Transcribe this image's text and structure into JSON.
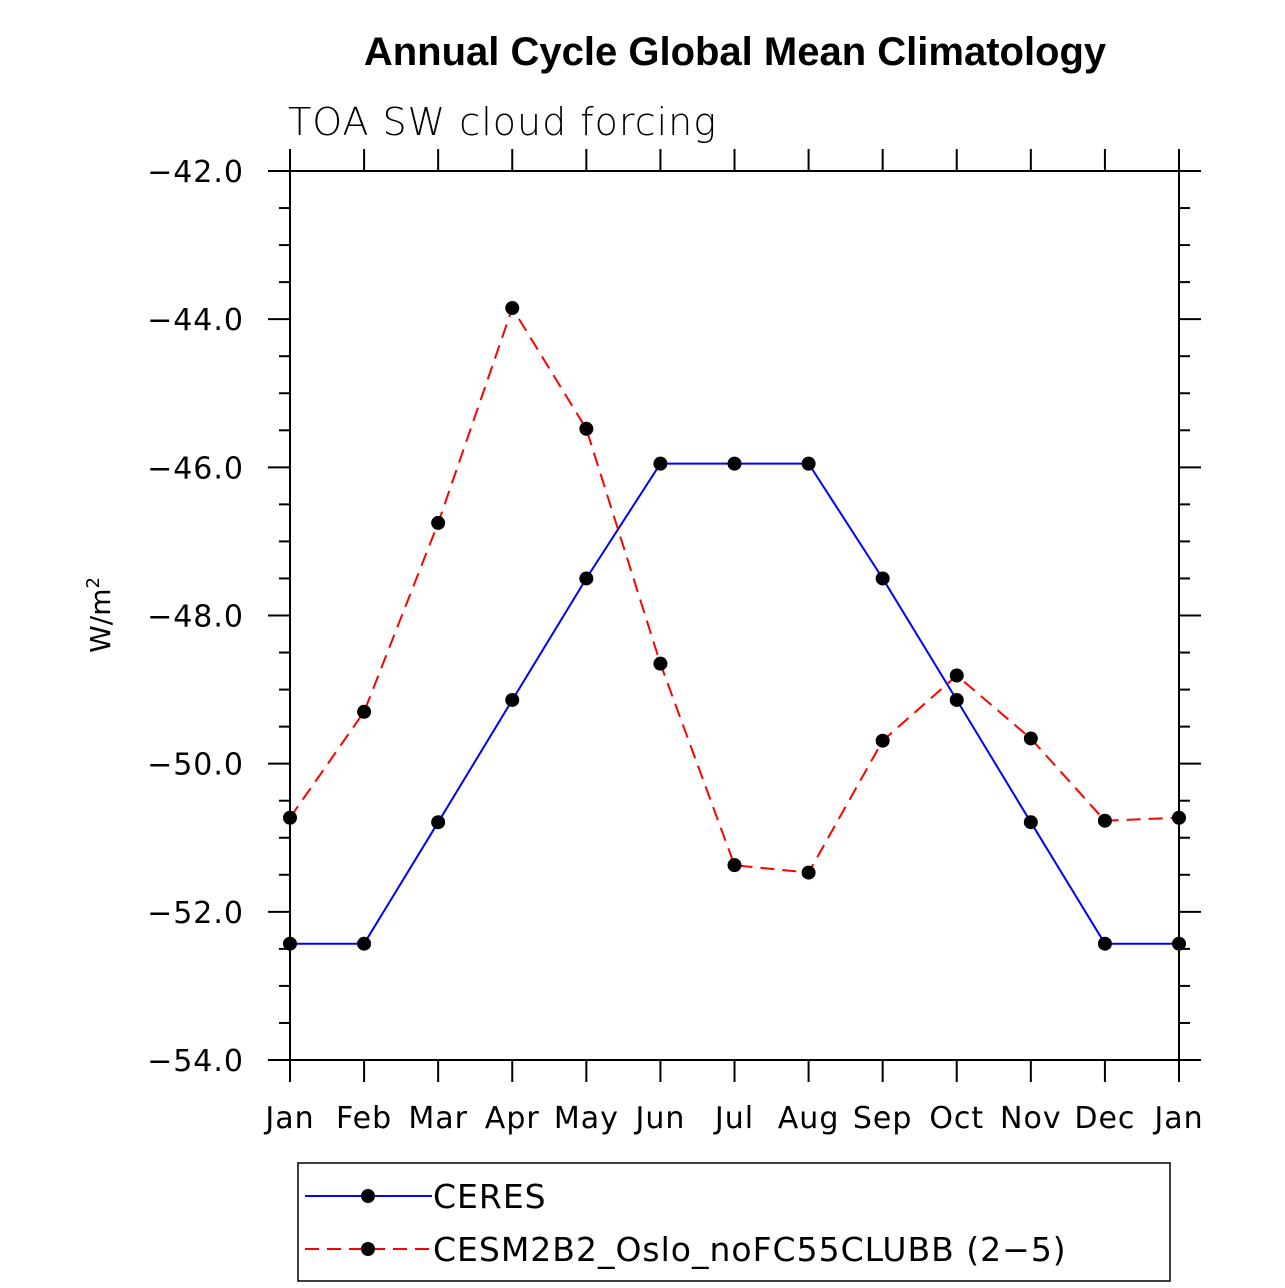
{
  "chart_data": {
    "type": "line",
    "title": "Annual Cycle Global Mean Climatology",
    "subtitle": "TOA SW cloud forcing",
    "ylabel": "W/m",
    "ylabel_superscript": "2",
    "ylim": [
      -54.0,
      -42.0
    ],
    "yticks": [
      "−42.0",
      "−44.0",
      "−46.0",
      "−48.0",
      "−50.0",
      "−52.0",
      "−54.0"
    ],
    "ytick_values": [
      -42,
      -44,
      -46,
      -48,
      -50,
      -52,
      -54
    ],
    "categories": [
      "Jan",
      "Feb",
      "Mar",
      "Apr",
      "May",
      "Jun",
      "Jul",
      "Aug",
      "Sep",
      "Oct",
      "Nov",
      "Dec",
      "Jan"
    ],
    "series": [
      {
        "name": "CERES",
        "color": "#0000ff",
        "dash": "solid",
        "values": [
          -52.43,
          -52.43,
          -50.79,
          -49.14,
          -47.5,
          -45.95,
          -45.95,
          -45.95,
          -47.5,
          -49.14,
          -50.79,
          -52.43,
          -52.43
        ]
      },
      {
        "name": "CESM2B2_Oslo_noFC55CLUBB (2−5)",
        "color": "#ff0000",
        "dash": "dashed",
        "values": [
          -50.73,
          -49.3,
          -46.75,
          -43.85,
          -45.48,
          -48.65,
          -51.37,
          -51.47,
          -49.69,
          -48.81,
          -49.66,
          -50.77,
          -50.73
        ]
      }
    ]
  }
}
